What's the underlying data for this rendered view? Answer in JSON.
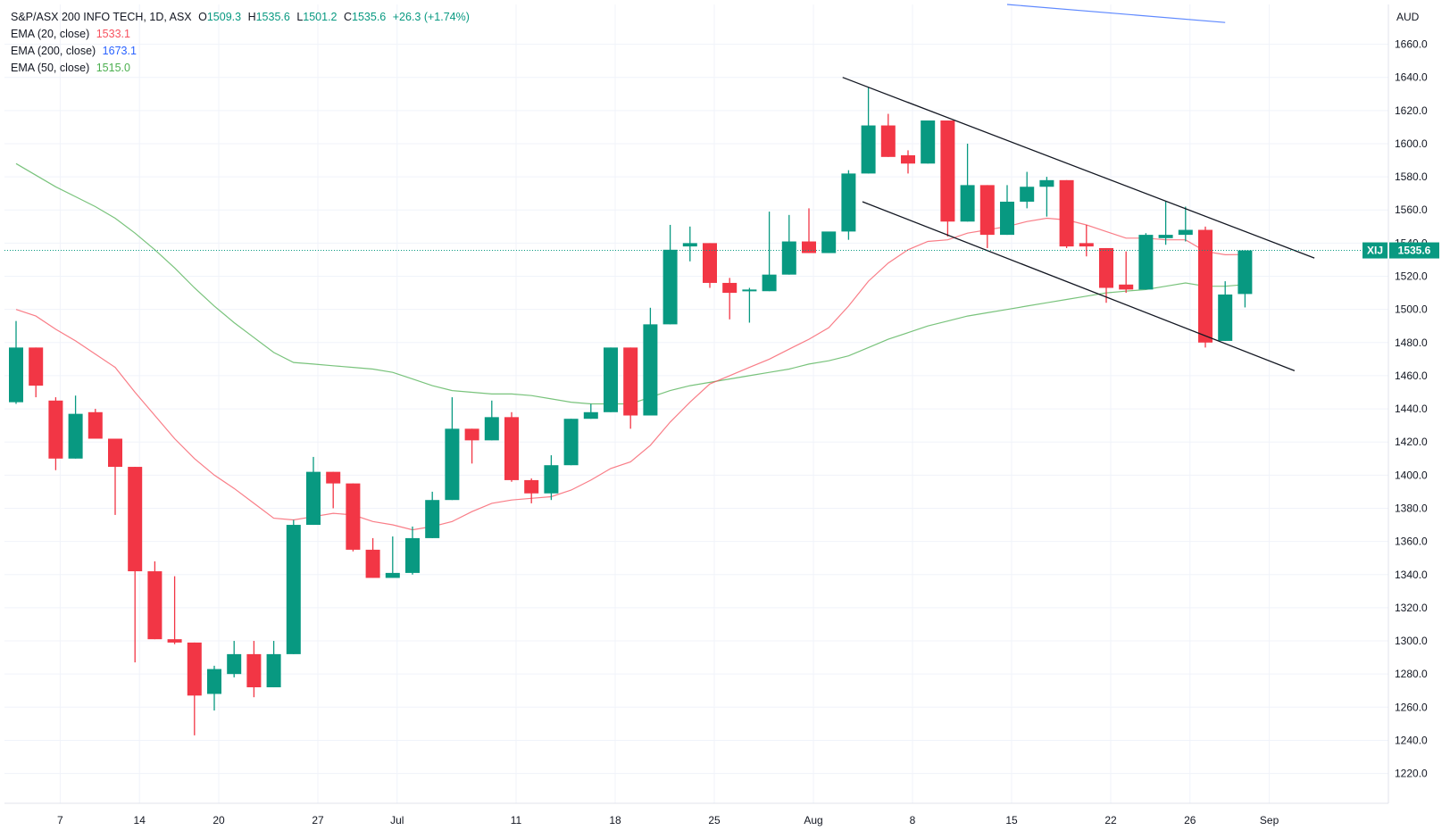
{
  "chart_data": {
    "type": "candlestick",
    "header": {
      "title": "S&P/ASX 200 INFO TECH, 1D, ASX",
      "open_label": "O",
      "open": "1509.3",
      "high_label": "H",
      "high": "1535.6",
      "low_label": "L",
      "low": "1501.2",
      "close_label": "C",
      "close": "1535.6",
      "change": "+26.3 (+1.74%)"
    },
    "indicators": [
      {
        "label": "EMA (20, close)",
        "value": "1533.1",
        "color": "#f7525f"
      },
      {
        "label": "EMA (200, close)",
        "value": "1673.1",
        "color": "#2962ff"
      },
      {
        "label": "EMA (50, close)",
        "value": "1515.0",
        "color": "#4caf50"
      }
    ],
    "currency": "AUD",
    "y_ticks": [
      1220,
      1240,
      1260,
      1280,
      1300,
      1320,
      1340,
      1360,
      1380,
      1400,
      1420,
      1440,
      1460,
      1480,
      1500,
      1520,
      1540,
      1560,
      1580,
      1600,
      1620,
      1640,
      1660
    ],
    "ylim": [
      1202,
      1684
    ],
    "x_ticks": [
      {
        "label": "7",
        "index": 2
      },
      {
        "label": "14",
        "index": 6
      },
      {
        "label": "20",
        "index": 10
      },
      {
        "label": "27",
        "index": 15
      },
      {
        "label": "Jul",
        "index": 19
      },
      {
        "label": "11",
        "index": 25
      },
      {
        "label": "18",
        "index": 30
      },
      {
        "label": "25",
        "index": 35
      },
      {
        "label": "Aug",
        "index": 40
      },
      {
        "label": "8",
        "index": 45
      },
      {
        "label": "15",
        "index": 50
      },
      {
        "label": "22",
        "index": 55
      },
      {
        "label": "26",
        "index": 59
      },
      {
        "label": "Sep",
        "index": 63
      }
    ],
    "last_price": {
      "symbol": "XIJ",
      "value": "1535.6"
    },
    "candles": [
      {
        "o": 1444,
        "h": 1493,
        "l": 1443,
        "c": 1477
      },
      {
        "o": 1477,
        "h": 1477,
        "l": 1447,
        "c": 1454
      },
      {
        "o": 1445,
        "h": 1447,
        "l": 1403,
        "c": 1410
      },
      {
        "o": 1410,
        "h": 1448,
        "l": 1410,
        "c": 1437
      },
      {
        "o": 1438,
        "h": 1440,
        "l": 1422,
        "c": 1422
      },
      {
        "o": 1422,
        "h": 1422,
        "l": 1376,
        "c": 1405
      },
      {
        "o": 1405,
        "h": 1405,
        "l": 1287,
        "c": 1342
      },
      {
        "o": 1342,
        "h": 1348,
        "l": 1301,
        "c": 1301
      },
      {
        "o": 1301,
        "h": 1339,
        "l": 1298,
        "c": 1299
      },
      {
        "o": 1299,
        "h": 1299,
        "l": 1243,
        "c": 1267
      },
      {
        "o": 1268,
        "h": 1285,
        "l": 1258,
        "c": 1283
      },
      {
        "o": 1280,
        "h": 1300,
        "l": 1278,
        "c": 1292
      },
      {
        "o": 1292,
        "h": 1300,
        "l": 1266,
        "c": 1272
      },
      {
        "o": 1272,
        "h": 1300,
        "l": 1272,
        "c": 1292
      },
      {
        "o": 1292,
        "h": 1373,
        "l": 1292,
        "c": 1370
      },
      {
        "o": 1370,
        "h": 1411,
        "l": 1370,
        "c": 1402
      },
      {
        "o": 1402,
        "h": 1402,
        "l": 1380,
        "c": 1395
      },
      {
        "o": 1395,
        "h": 1395,
        "l": 1354,
        "c": 1355
      },
      {
        "o": 1355,
        "h": 1362,
        "l": 1338,
        "c": 1338
      },
      {
        "o": 1338,
        "h": 1363,
        "l": 1338,
        "c": 1341
      },
      {
        "o": 1341,
        "h": 1369,
        "l": 1340,
        "c": 1362
      },
      {
        "o": 1362,
        "h": 1390,
        "l": 1362,
        "c": 1385
      },
      {
        "o": 1385,
        "h": 1447,
        "l": 1385,
        "c": 1428
      },
      {
        "o": 1428,
        "h": 1428,
        "l": 1407,
        "c": 1421
      },
      {
        "o": 1421,
        "h": 1445,
        "l": 1421,
        "c": 1435
      },
      {
        "o": 1435,
        "h": 1438,
        "l": 1396,
        "c": 1397
      },
      {
        "o": 1397,
        "h": 1398,
        "l": 1383,
        "c": 1389
      },
      {
        "o": 1389,
        "h": 1412,
        "l": 1385,
        "c": 1406
      },
      {
        "o": 1406,
        "h": 1434,
        "l": 1406,
        "c": 1434
      },
      {
        "o": 1434,
        "h": 1443,
        "l": 1434,
        "c": 1438
      },
      {
        "o": 1438,
        "h": 1477,
        "l": 1438,
        "c": 1477
      },
      {
        "o": 1477,
        "h": 1477,
        "l": 1428,
        "c": 1436
      },
      {
        "o": 1436,
        "h": 1501,
        "l": 1436,
        "c": 1491
      },
      {
        "o": 1491,
        "h": 1551,
        "l": 1491,
        "c": 1536
      },
      {
        "o": 1538,
        "h": 1550,
        "l": 1529,
        "c": 1540
      },
      {
        "o": 1540,
        "h": 1540,
        "l": 1513,
        "c": 1516
      },
      {
        "o": 1516,
        "h": 1519,
        "l": 1494,
        "c": 1510
      },
      {
        "o": 1511,
        "h": 1513,
        "l": 1492,
        "c": 1512
      },
      {
        "o": 1511,
        "h": 1559,
        "l": 1511,
        "c": 1521
      },
      {
        "o": 1521,
        "h": 1557,
        "l": 1521,
        "c": 1541
      },
      {
        "o": 1541,
        "h": 1561,
        "l": 1534,
        "c": 1534
      },
      {
        "o": 1534,
        "h": 1546,
        "l": 1534,
        "c": 1547
      },
      {
        "o": 1547,
        "h": 1584,
        "l": 1542,
        "c": 1582
      },
      {
        "o": 1582,
        "h": 1634,
        "l": 1582,
        "c": 1611
      },
      {
        "o": 1611,
        "h": 1618,
        "l": 1592,
        "c": 1592
      },
      {
        "o": 1593,
        "h": 1596,
        "l": 1582,
        "c": 1588
      },
      {
        "o": 1588,
        "h": 1614,
        "l": 1588,
        "c": 1614
      },
      {
        "o": 1614,
        "h": 1614,
        "l": 1544,
        "c": 1553
      },
      {
        "o": 1553,
        "h": 1600,
        "l": 1553,
        "c": 1575
      },
      {
        "o": 1575,
        "h": 1575,
        "l": 1537,
        "c": 1545
      },
      {
        "o": 1545,
        "h": 1575,
        "l": 1545,
        "c": 1565
      },
      {
        "o": 1565,
        "h": 1583,
        "l": 1561,
        "c": 1574
      },
      {
        "o": 1574,
        "h": 1580,
        "l": 1556,
        "c": 1578
      },
      {
        "o": 1578,
        "h": 1578,
        "l": 1537,
        "c": 1538
      },
      {
        "o": 1540,
        "h": 1551,
        "l": 1532,
        "c": 1538
      },
      {
        "o": 1537,
        "h": 1537,
        "l": 1504,
        "c": 1513
      },
      {
        "o": 1515,
        "h": 1535,
        "l": 1510,
        "c": 1512
      },
      {
        "o": 1512,
        "h": 1546,
        "l": 1512,
        "c": 1545
      },
      {
        "o": 1543,
        "h": 1565,
        "l": 1539,
        "c": 1545
      },
      {
        "o": 1545,
        "h": 1562,
        "l": 1541,
        "c": 1548
      },
      {
        "o": 1548,
        "h": 1550,
        "l": 1477,
        "c": 1480
      },
      {
        "o": 1481,
        "h": 1517,
        "l": 1481,
        "c": 1509
      },
      {
        "o": 1509.3,
        "h": 1535.6,
        "l": 1501.2,
        "c": 1535.6
      }
    ],
    "ema20": [
      1500,
      1496,
      1488,
      1481,
      1473,
      1465,
      1450,
      1436,
      1422,
      1410,
      1400,
      1392,
      1383,
      1374,
      1373,
      1375,
      1377,
      1376,
      1372,
      1370,
      1367,
      1369,
      1372,
      1378,
      1383,
      1385,
      1386,
      1387,
      1391,
      1397,
      1404,
      1408,
      1418,
      1432,
      1444,
      1455,
      1460,
      1465,
      1470,
      1476,
      1482,
      1489,
      1502,
      1517,
      1528,
      1536,
      1541,
      1542,
      1546,
      1548,
      1550,
      1553,
      1555,
      1554,
      1551,
      1547,
      1543,
      1543,
      1542,
      1542,
      1535,
      1533,
      1533.1
    ],
    "ema200_x": [
      50,
      61
    ],
    "ema200_y": [
      1684,
      1673.1
    ],
    "ema50": [
      1588,
      1581,
      1574,
      1568,
      1562,
      1555,
      1546,
      1536,
      1525,
      1513,
      1502,
      1492,
      1483,
      1474,
      1468,
      1467,
      1466,
      1465,
      1464,
      1462,
      1458,
      1454,
      1451,
      1450,
      1449,
      1449,
      1448,
      1446,
      1444,
      1443,
      1443,
      1443,
      1447,
      1451,
      1454,
      1456,
      1458,
      1460,
      1462,
      1464,
      1467,
      1469,
      1472,
      1477,
      1482,
      1486,
      1490,
      1493,
      1496,
      1498,
      1500,
      1502,
      1504,
      1506,
      1508,
      1510,
      1511,
      1512,
      1514,
      1516,
      1514,
      1514,
      1515.0
    ],
    "trendlines": [
      {
        "x": [
          41.7,
          65.5
        ],
        "y": [
          1640,
          1531
        ]
      },
      {
        "x": [
          42.7,
          64.5
        ],
        "y": [
          1565,
          1463
        ]
      }
    ]
  }
}
